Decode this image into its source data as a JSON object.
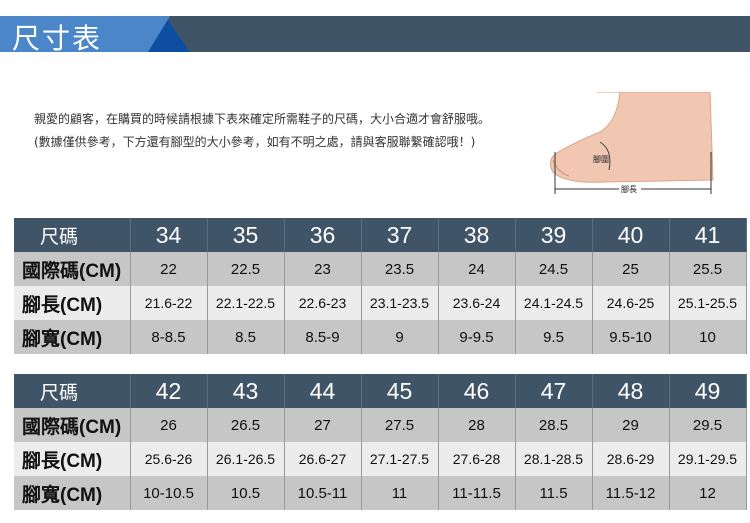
{
  "header": {
    "title": "尺寸表"
  },
  "intro": "親愛的顧客，在購買的時候請根據下表來確定所需鞋子的尺碼，大小合適才會舒服哦。 (數據僅供參考，下方還有腳型的大小參考，如有不明之處，請與客服聯繫確認哦！)",
  "foot_labels": {
    "girth": "腳圍",
    "length": "腳長"
  },
  "tables": [
    {
      "rows": [
        {
          "label": "尺碼",
          "values": [
            "34",
            "35",
            "36",
            "37",
            "38",
            "39",
            "40",
            "41"
          ]
        },
        {
          "label": "國際碼(CM)",
          "values": [
            "22",
            "22.5",
            "23",
            "23.5",
            "24",
            "24.5",
            "25",
            "25.5"
          ]
        },
        {
          "label": "腳長(CM)",
          "values": [
            "21.6-22",
            "22.1-22.5",
            "22.6-23",
            "23.1-23.5",
            "23.6-24",
            "24.1-24.5",
            "24.6-25",
            "25.1-25.5"
          ]
        },
        {
          "label": "腳寬(CM)",
          "values": [
            "8-8.5",
            "8.5",
            "8.5-9",
            "9",
            "9-9.5",
            "9.5",
            "9.5-10",
            "10"
          ]
        }
      ]
    },
    {
      "rows": [
        {
          "label": "尺碼",
          "values": [
            "42",
            "43",
            "44",
            "45",
            "46",
            "47",
            "48",
            "49"
          ]
        },
        {
          "label": "國際碼(CM)",
          "values": [
            "26",
            "26.5",
            "27",
            "27.5",
            "28",
            "28.5",
            "29",
            "29.5"
          ]
        },
        {
          "label": "腳長(CM)",
          "values": [
            "25.6-26",
            "26.1-26.5",
            "26.6-27",
            "27.1-27.5",
            "27.6-28",
            "28.1-28.5",
            "28.6-29",
            "29.1-29.5"
          ]
        },
        {
          "label": "腳寬(CM)",
          "values": [
            "10-10.5",
            "10.5",
            "10.5-11",
            "11",
            "11-11.5",
            "11.5",
            "11.5-12",
            "12"
          ]
        }
      ]
    }
  ]
}
